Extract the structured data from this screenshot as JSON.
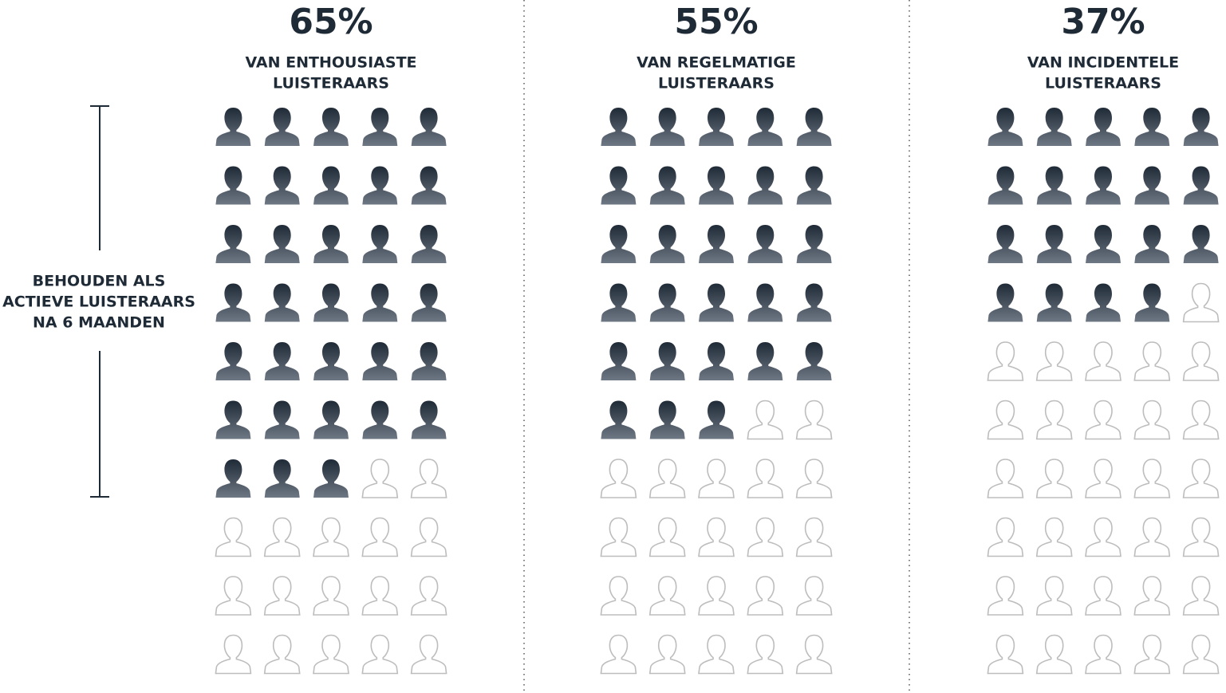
{
  "chart_data": {
    "type": "pictogram",
    "ylim": [
      0,
      100
    ],
    "filled_color": "#1f2a37",
    "filled_color_light": "#6e7884",
    "empty_color": "#bdbdbd",
    "annotation": [
      "BEHOUDEN ALS",
      "ACTIEVE LUISTERAARS",
      "NA 6 MAANDEN"
    ],
    "groups": [
      {
        "value": 65,
        "value_label": "65%",
        "label": [
          "VAN ENTHOUSIASTE",
          "LUISTERAARS"
        ]
      },
      {
        "value": 55,
        "value_label": "55%",
        "label": [
          "VAN REGELMATIGE",
          "LUISTERAARS"
        ]
      },
      {
        "value": 37,
        "value_label": "37%",
        "label": [
          "VAN INCIDENTELE",
          "LUISTERAARS"
        ]
      }
    ]
  }
}
